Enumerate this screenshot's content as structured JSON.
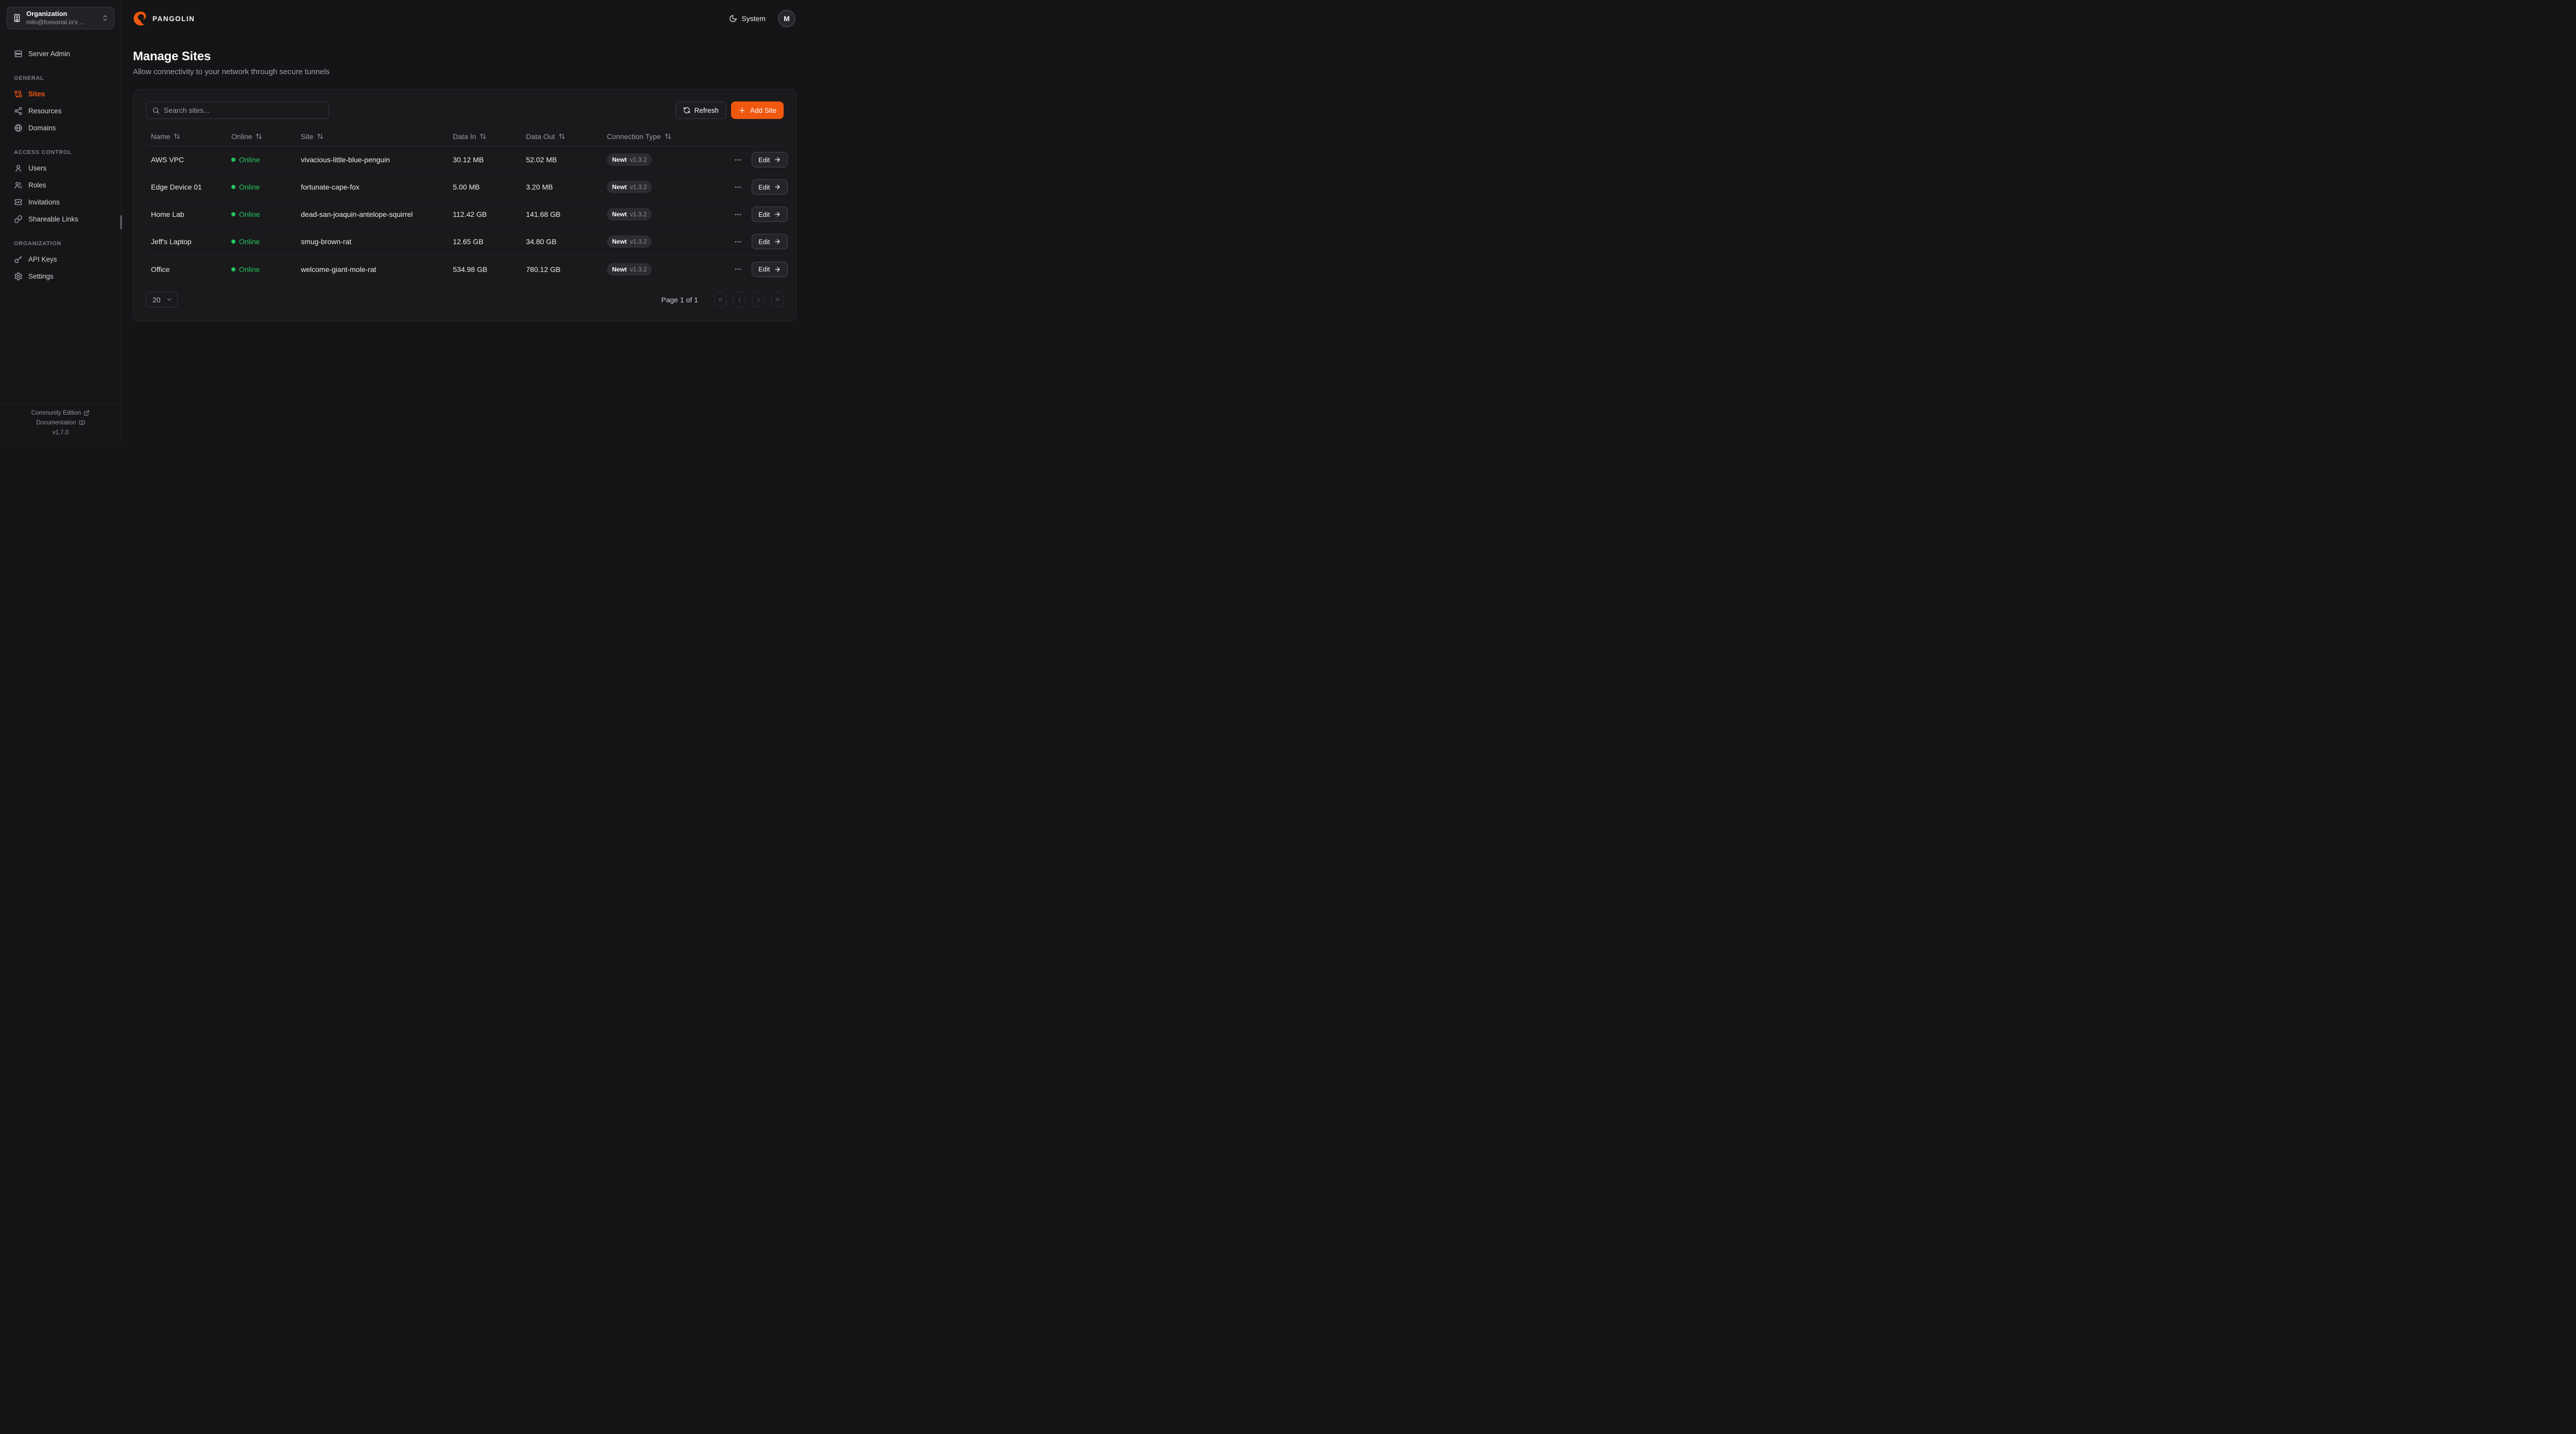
{
  "brand": {
    "name": "PANGOLIN"
  },
  "org_switcher": {
    "label": "Organization",
    "value": "milo@fossorial.io's ..."
  },
  "topbar": {
    "theme_label": "System",
    "avatar_initial": "M"
  },
  "sidebar": {
    "server_admin_label": "Server Admin",
    "sections": [
      {
        "title": "GENERAL",
        "items": [
          {
            "label": "Sites"
          },
          {
            "label": "Resources"
          },
          {
            "label": "Domains"
          }
        ]
      },
      {
        "title": "ACCESS CONTROL",
        "items": [
          {
            "label": "Users"
          },
          {
            "label": "Roles"
          },
          {
            "label": "Invitations"
          },
          {
            "label": "Shareable Links"
          }
        ]
      },
      {
        "title": "ORGANIZATION",
        "items": [
          {
            "label": "API Keys"
          },
          {
            "label": "Settings"
          }
        ]
      }
    ],
    "footer": {
      "community_edition": "Community Edition",
      "documentation": "Documentation",
      "version": "v1.7.0"
    }
  },
  "page": {
    "title": "Manage Sites",
    "subtitle": "Allow connectivity to your network through secure tunnels"
  },
  "toolbar": {
    "search_placeholder": "Search sites...",
    "refresh_label": "Refresh",
    "add_site_label": "Add Site"
  },
  "table": {
    "columns": [
      "Name",
      "Online",
      "Site",
      "Data In",
      "Data Out",
      "Connection Type"
    ],
    "edit_label": "Edit",
    "rows": [
      {
        "name": "AWS VPC",
        "status": "Online",
        "site": "vivacious-little-blue-penguin",
        "data_in": "30.12 MB",
        "data_out": "52.02 MB",
        "conn_type": "Newt",
        "conn_version": "v1.3.2"
      },
      {
        "name": "Edge Device 01",
        "status": "Online",
        "site": "fortunate-cape-fox",
        "data_in": "5.00 MB",
        "data_out": "3.20 MB",
        "conn_type": "Newt",
        "conn_version": "v1.3.2"
      },
      {
        "name": "Home Lab",
        "status": "Online",
        "site": "dead-san-joaquin-antelope-squirrel",
        "data_in": "112.42 GB",
        "data_out": "141.68 GB",
        "conn_type": "Newt",
        "conn_version": "v1.3.2"
      },
      {
        "name": "Jeff's Laptop",
        "status": "Online",
        "site": "smug-brown-rat",
        "data_in": "12.65 GB",
        "data_out": "34.80 GB",
        "conn_type": "Newt",
        "conn_version": "v1.3.2"
      },
      {
        "name": "Office",
        "status": "Online",
        "site": "welcome-giant-mole-rat",
        "data_in": "534.98 GB",
        "data_out": "780.12 GB",
        "conn_type": "Newt",
        "conn_version": "v1.3.2"
      }
    ]
  },
  "pagination": {
    "page_size": "20",
    "page_info": "Page 1 of 1"
  },
  "colors": {
    "accent": "#F1580F",
    "online_green": "#22C55E",
    "background": "#151517",
    "card": "#1A1A1D"
  }
}
